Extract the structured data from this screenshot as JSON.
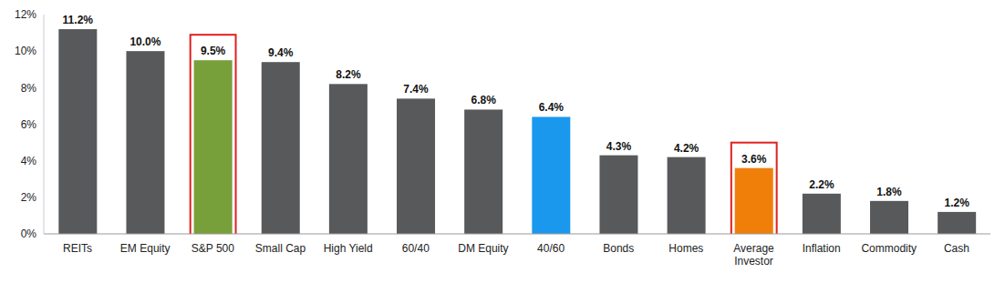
{
  "chart_data": {
    "type": "bar",
    "categories": [
      "REITs",
      "EM Equity",
      "S&P 500",
      "Small Cap",
      "High Yield",
      "60/40",
      "DM Equity",
      "40/60",
      "Bonds",
      "Homes",
      "Average Investor",
      "Inflation",
      "Commodity",
      "Cash"
    ],
    "values": [
      11.2,
      10.0,
      9.5,
      9.4,
      8.2,
      7.4,
      6.8,
      6.4,
      4.3,
      4.2,
      3.6,
      2.2,
      1.8,
      1.2
    ],
    "value_labels": [
      "11.2%",
      "10.0%",
      "9.5%",
      "9.4%",
      "8.2%",
      "7.4%",
      "6.8%",
      "6.4%",
      "4.3%",
      "4.2%",
      "3.6%",
      "2.2%",
      "1.8%",
      "1.2%"
    ],
    "colors": [
      "#58595b",
      "#58595b",
      "#77a03a",
      "#58595b",
      "#58595b",
      "#58595b",
      "#58595b",
      "#1a98ee",
      "#58595b",
      "#58595b",
      "#f07f09",
      "#58595b",
      "#58595b",
      "#58595b"
    ],
    "ylim": [
      0,
      12
    ],
    "yticks": [
      {
        "value": 0,
        "label": "0%"
      },
      {
        "value": 2,
        "label": "2%"
      },
      {
        "value": 4,
        "label": "4%"
      },
      {
        "value": 6,
        "label": "6%"
      },
      {
        "value": 8,
        "label": "8%"
      },
      {
        "value": 10,
        "label": "10%"
      },
      {
        "value": 12,
        "label": "12%"
      }
    ],
    "grid": false,
    "data_labels": true
  }
}
